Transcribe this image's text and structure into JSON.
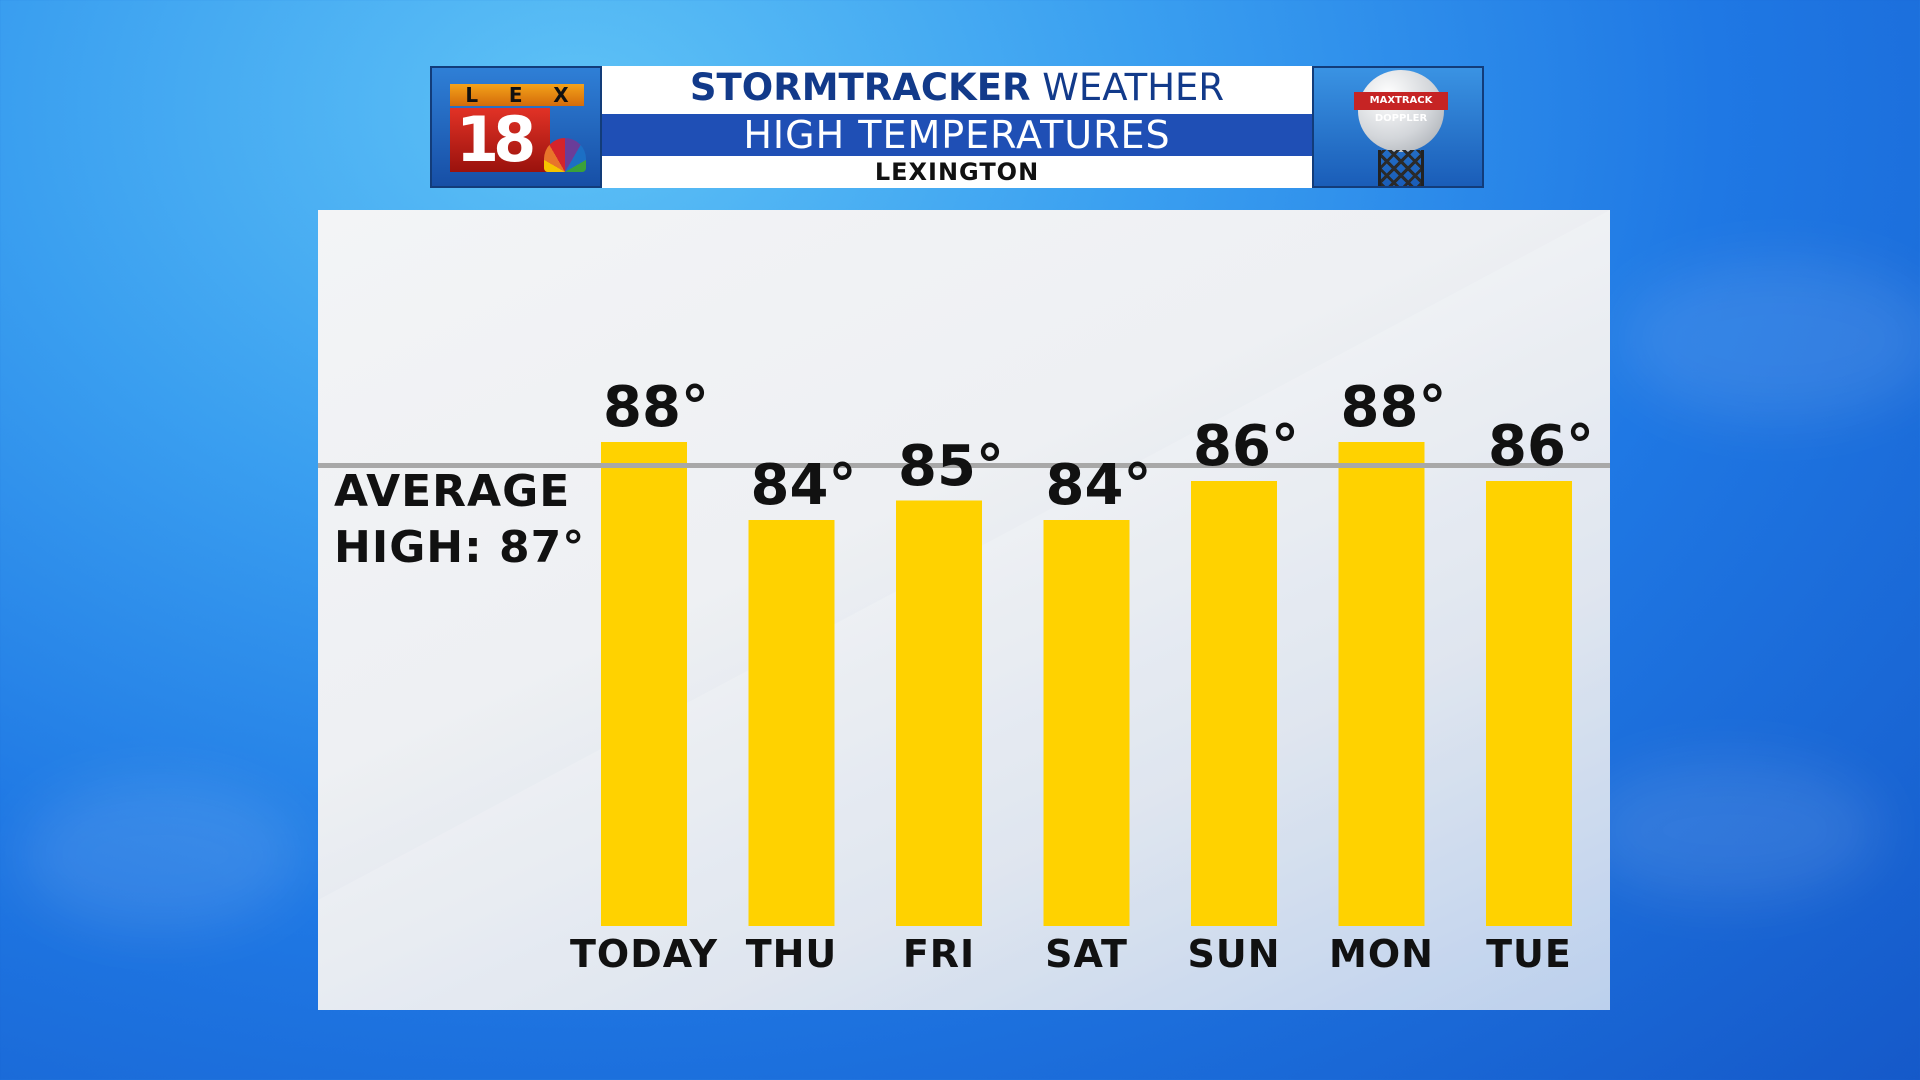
{
  "header": {
    "logo": {
      "letters": [
        "L",
        "E",
        "X"
      ],
      "number": "18"
    },
    "title_bold": "STORMTRACKER",
    "title_rest": " WEATHER",
    "subtitle": "HIGH TEMPERATURES",
    "location": "LEXINGTON",
    "radar_badge": "MAXTRACK DOPPLER"
  },
  "colors": {
    "bar": "#ffd200",
    "average_line": "#a8a8a8",
    "title_text": "#123a8a",
    "title_band": "#1f4fb5"
  },
  "chart_data": {
    "type": "bar",
    "title": "HIGH TEMPERATURES",
    "categories": [
      "TODAY",
      "THU",
      "FRI",
      "SAT",
      "SUN",
      "MON",
      "TUE"
    ],
    "values": [
      88,
      84,
      85,
      84,
      86,
      88,
      86
    ],
    "data_labels": [
      "88°",
      "84°",
      "85°",
      "84°",
      "86°",
      "88°",
      "86°"
    ],
    "average_high": 87,
    "average_label_line1": "AVERAGE",
    "average_label_line2": "HIGH: 87°",
    "unit": "°F",
    "grid": false,
    "legend": "none"
  }
}
